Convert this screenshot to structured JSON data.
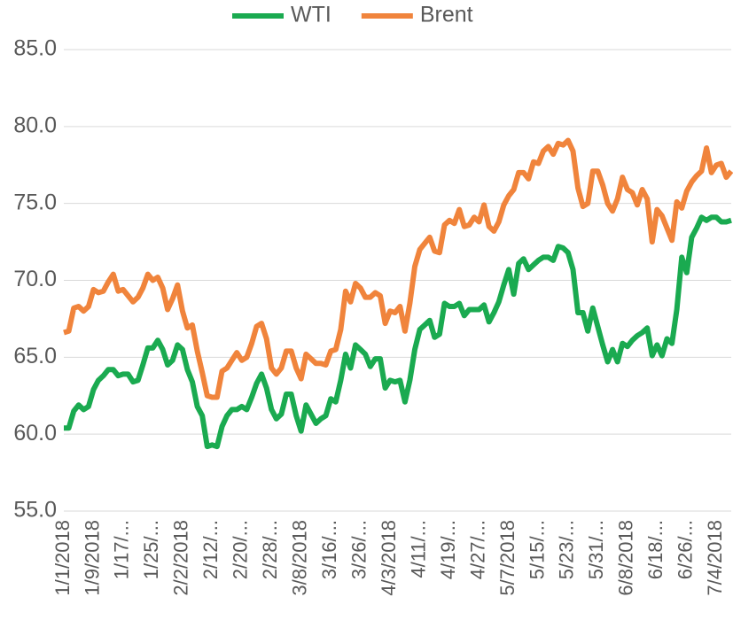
{
  "chart_data": {
    "type": "line",
    "categories": [
      "1/1/2018",
      null,
      null,
      null,
      null,
      null,
      "1/9/2018",
      null,
      null,
      null,
      null,
      null,
      "1/17/...",
      null,
      null,
      null,
      null,
      null,
      "1/25/...",
      null,
      null,
      null,
      null,
      null,
      "2/2/2018",
      null,
      null,
      null,
      null,
      null,
      "2/12/...",
      null,
      null,
      null,
      null,
      null,
      "2/20/...",
      null,
      null,
      null,
      null,
      null,
      "2/28/...",
      null,
      null,
      null,
      null,
      null,
      "3/8/2018",
      null,
      null,
      null,
      null,
      null,
      "3/16/...",
      null,
      null,
      null,
      null,
      null,
      "3/26/...",
      null,
      null,
      null,
      null,
      null,
      "4/3/2018",
      null,
      null,
      null,
      null,
      null,
      "4/11/...",
      null,
      null,
      null,
      null,
      null,
      "4/19/...",
      null,
      null,
      null,
      null,
      null,
      "4/27/...",
      null,
      null,
      null,
      null,
      null,
      "5/7/2018",
      null,
      null,
      null,
      null,
      null,
      "5/15/...",
      null,
      null,
      null,
      null,
      null,
      "5/23/...",
      null,
      null,
      null,
      null,
      null,
      "5/31/...",
      null,
      null,
      null,
      null,
      null,
      "6/8/2018",
      null,
      null,
      null,
      null,
      null,
      "6/18/...",
      null,
      null,
      null,
      null,
      null,
      "6/26/...",
      null,
      null,
      null,
      null,
      null,
      "7/4/2018",
      null,
      null,
      null
    ],
    "series": [
      {
        "name": "WTI",
        "color": "#1aaa50",
        "values": [
          60.4,
          60.4,
          61.5,
          61.9,
          61.6,
          61.8,
          62.9,
          63.5,
          63.8,
          64.2,
          64.2,
          63.8,
          63.9,
          63.9,
          63.4,
          63.5,
          64.5,
          65.6,
          65.6,
          66.1,
          65.5,
          64.5,
          64.8,
          65.8,
          65.5,
          64.2,
          63.4,
          61.8,
          61.2,
          59.2,
          59.3,
          59.2,
          60.5,
          61.2,
          61.6,
          61.6,
          61.8,
          61.6,
          62.4,
          63.3,
          63.9,
          63.0,
          61.6,
          61.0,
          61.3,
          62.6,
          62.6,
          61.2,
          60.2,
          61.9,
          61.3,
          60.7,
          61.0,
          61.2,
          62.3,
          62.1,
          63.5,
          65.2,
          64.3,
          65.8,
          65.5,
          65.2,
          64.4,
          64.9,
          64.9,
          63.0,
          63.5,
          63.4,
          63.5,
          62.1,
          63.5,
          65.5,
          66.8,
          67.1,
          67.4,
          66.3,
          66.5,
          68.5,
          68.3,
          68.3,
          68.5,
          67.7,
          68.1,
          68.1,
          68.1,
          68.4,
          67.3,
          67.9,
          68.6,
          69.7,
          70.7,
          69.1,
          71.1,
          71.4,
          70.7,
          71.0,
          71.3,
          71.5,
          71.5,
          71.3,
          72.2,
          72.1,
          71.8,
          70.7,
          67.9,
          67.9,
          66.7,
          68.2,
          67.0,
          65.8,
          64.7,
          65.5,
          64.7,
          65.9,
          65.7,
          66.1,
          66.4,
          66.6,
          66.9,
          65.1,
          65.8,
          65.1,
          66.2,
          65.9,
          68.1,
          71.5,
          70.5,
          72.8,
          73.4,
          74.1,
          73.9,
          74.1,
          74.1,
          73.8,
          73.8,
          73.9
        ]
      },
      {
        "name": "Brent",
        "color": "#f0843c",
        "values": [
          66.6,
          66.7,
          68.2,
          68.3,
          68.0,
          68.3,
          69.4,
          69.2,
          69.3,
          69.9,
          70.4,
          69.3,
          69.4,
          69.0,
          68.6,
          68.9,
          69.5,
          70.4,
          70.0,
          70.2,
          69.5,
          68.1,
          68.8,
          69.7,
          68.0,
          66.9,
          67.1,
          65.4,
          64.0,
          62.5,
          62.4,
          62.4,
          64.1,
          64.3,
          64.8,
          65.3,
          64.8,
          65.0,
          65.9,
          67.0,
          67.2,
          66.2,
          64.3,
          63.9,
          64.3,
          65.4,
          65.4,
          64.3,
          63.6,
          65.2,
          64.9,
          64.6,
          64.6,
          64.5,
          65.4,
          65.5,
          66.8,
          69.3,
          68.6,
          69.8,
          69.5,
          68.9,
          68.9,
          69.2,
          69.0,
          67.2,
          68.0,
          67.9,
          68.3,
          66.7,
          68.5,
          70.9,
          72.0,
          72.4,
          72.8,
          71.9,
          71.8,
          73.6,
          73.9,
          73.7,
          74.6,
          73.5,
          73.6,
          74.1,
          73.8,
          74.9,
          73.5,
          73.2,
          73.8,
          74.9,
          75.5,
          75.9,
          77.0,
          77.0,
          76.6,
          77.7,
          77.6,
          78.4,
          78.7,
          78.2,
          78.9,
          78.8,
          79.1,
          78.4,
          76.0,
          74.8,
          75.0,
          77.1,
          77.1,
          76.2,
          75.0,
          74.5,
          75.3,
          76.7,
          75.9,
          75.7,
          74.9,
          75.9,
          75.3,
          72.5,
          74.6,
          74.2,
          73.4,
          72.6,
          75.1,
          74.7,
          75.8,
          76.4,
          76.8,
          77.1,
          78.6,
          77.0,
          77.5,
          77.6,
          76.7,
          77.1
        ]
      }
    ],
    "ylim": [
      55,
      85
    ],
    "yticks": [
      {
        "value": 55,
        "label": "55.0"
      },
      {
        "value": 60,
        "label": "60.0"
      },
      {
        "value": 65,
        "label": "65.0"
      },
      {
        "value": 70,
        "label": "70.0"
      },
      {
        "value": 75,
        "label": "75.0"
      },
      {
        "value": 80,
        "label": "80.0"
      },
      {
        "value": 85,
        "label": "85.0"
      }
    ],
    "grid": true,
    "legend": "top"
  }
}
